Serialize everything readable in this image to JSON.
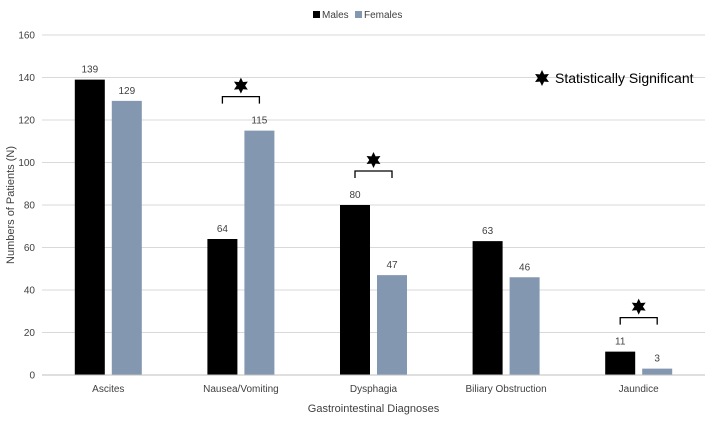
{
  "chart_data": {
    "type": "bar",
    "categories": [
      "Ascites",
      "Nausea/Vomiting",
      "Dysphagia",
      "Biliary Obstruction",
      "Jaundice"
    ],
    "series": [
      {
        "name": "Males",
        "values": [
          139,
          64,
          80,
          63,
          11
        ],
        "color": "#000000"
      },
      {
        "name": "Females",
        "values": [
          129,
          115,
          47,
          46,
          3
        ],
        "color": "#8497b0"
      }
    ],
    "xlabel": "Gastrointestinal Diagnoses",
    "ylabel": "Numbers of Patients (N)",
    "ylim": [
      0,
      160
    ],
    "yticks": [
      0,
      20,
      40,
      60,
      80,
      100,
      120,
      140,
      160
    ],
    "grid": "horizontal",
    "legend": "top-center",
    "significant_categories": [
      "Nausea/Vomiting",
      "Dysphagia",
      "Jaundice"
    ],
    "annotation": "Statistically Significant"
  }
}
